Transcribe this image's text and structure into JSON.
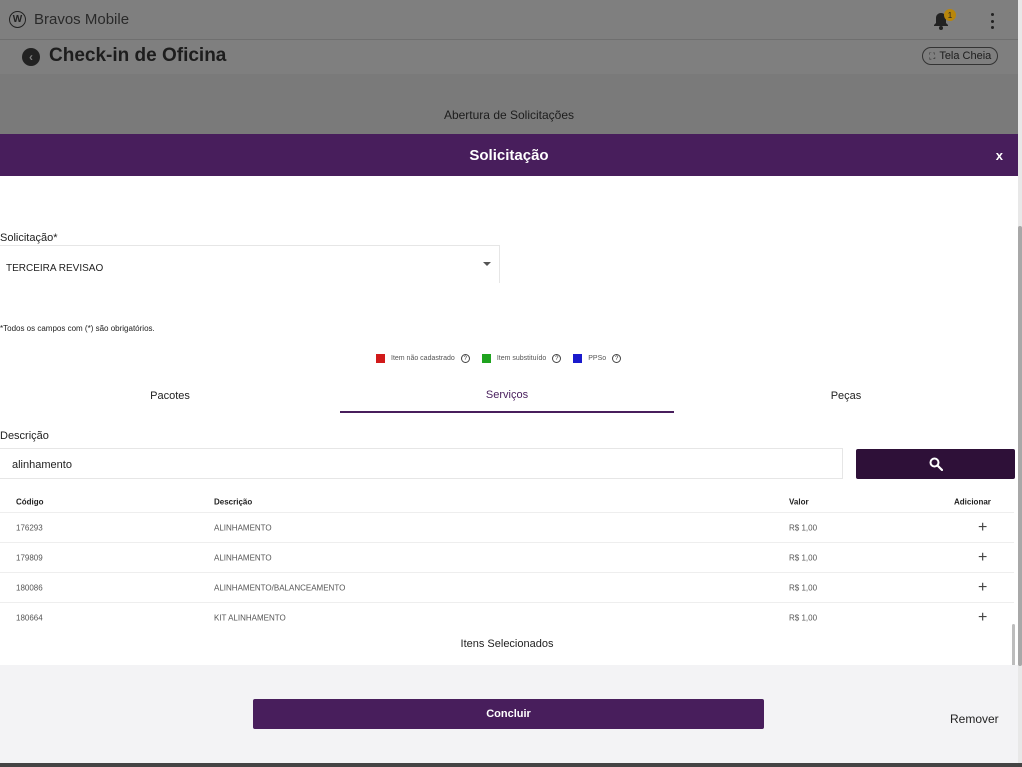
{
  "app": {
    "name": "Bravos Mobile",
    "notification_count": "1"
  },
  "header": {
    "title": "Check-in de Oficina",
    "fullscreen_label": "Tela Cheia"
  },
  "background": {
    "section_title": "Abertura de Solicitações"
  },
  "modal": {
    "title": "Solicitação",
    "close_label": "x",
    "request_field": {
      "label": "Solicitação*",
      "value": "TERCEIRA REVISAO"
    },
    "required_note": "*Todos os campos com (*) são obrigatórios.",
    "legend": [
      {
        "label": "Item não cadastrado",
        "color": "#d11a1a"
      },
      {
        "label": "Item substituído",
        "color": "#1fa31f"
      },
      {
        "label": "PPSo",
        "color": "#1a1acc"
      }
    ],
    "tabs": [
      {
        "label": "Pacotes",
        "active": false
      },
      {
        "label": "Serviços",
        "active": true
      },
      {
        "label": "Peças",
        "active": false
      }
    ],
    "description_field": {
      "label": "Descrição",
      "value": "alinhamento"
    },
    "table": {
      "headers": {
        "code": "Código",
        "description": "Descrição",
        "value": "Valor",
        "add": "Adicionar"
      },
      "rows": [
        {
          "code": "176293",
          "description": "ALINHAMENTO",
          "value": "R$ 1,00"
        },
        {
          "code": "179809",
          "description": "ALINHAMENTO",
          "value": "R$ 1,00"
        },
        {
          "code": "180086",
          "description": "ALINHAMENTO/BALANCEAMENTO",
          "value": "R$ 1,00"
        },
        {
          "code": "180664",
          "description": "KIT ALINHAMENTO",
          "value": "R$ 1,00"
        }
      ]
    },
    "selected_items_label": "Itens Selecionados",
    "conclude_label": "Concluir",
    "remove_label": "Remover"
  },
  "colors": {
    "primary": "#481e5c",
    "search_button": "#2e1038"
  }
}
